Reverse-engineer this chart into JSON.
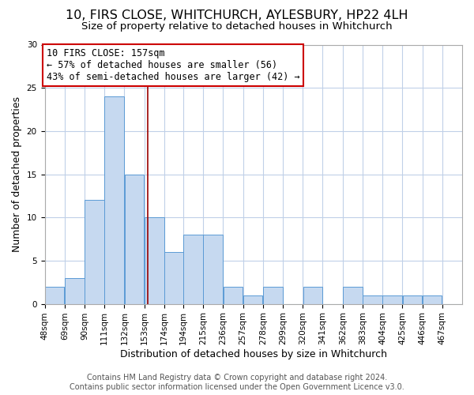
{
  "title": "10, FIRS CLOSE, WHITCHURCH, AYLESBURY, HP22 4LH",
  "subtitle": "Size of property relative to detached houses in Whitchurch",
  "xlabel": "Distribution of detached houses by size in Whitchurch",
  "ylabel": "Number of detached properties",
  "bar_left_edges": [
    48,
    69,
    90,
    111,
    132,
    153,
    174,
    194,
    215,
    236,
    257,
    278,
    299,
    320,
    341,
    362,
    383,
    404,
    425,
    446
  ],
  "bar_heights": [
    2,
    3,
    12,
    24,
    15,
    10,
    6,
    8,
    8,
    2,
    1,
    2,
    0,
    2,
    0,
    2,
    1,
    1,
    1,
    1
  ],
  "bin_width": 21,
  "tick_labels": [
    "48sqm",
    "69sqm",
    "90sqm",
    "111sqm",
    "132sqm",
    "153sqm",
    "174sqm",
    "194sqm",
    "215sqm",
    "236sqm",
    "257sqm",
    "278sqm",
    "299sqm",
    "320sqm",
    "341sqm",
    "362sqm",
    "383sqm",
    "404sqm",
    "425sqm",
    "446sqm",
    "467sqm"
  ],
  "bar_color": "#c6d9f0",
  "bar_edge_color": "#5b9bd5",
  "grid_color": "#c0d0e8",
  "reference_line_x": 157,
  "reference_line_color": "#990000",
  "annotation_line1": "10 FIRS CLOSE: 157sqm",
  "annotation_line2": "← 57% of detached houses are smaller (56)",
  "annotation_line3": "43% of semi-detached houses are larger (42) →",
  "box_edge_color": "#cc0000",
  "ylim": [
    0,
    30
  ],
  "xlim": [
    48,
    488
  ],
  "footer1": "Contains HM Land Registry data © Crown copyright and database right 2024.",
  "footer2": "Contains public sector information licensed under the Open Government Licence v3.0.",
  "title_fontsize": 11.5,
  "subtitle_fontsize": 9.5,
  "axis_label_fontsize": 9,
  "tick_fontsize": 7.5,
  "annotation_fontsize": 8.5,
  "footer_fontsize": 7
}
